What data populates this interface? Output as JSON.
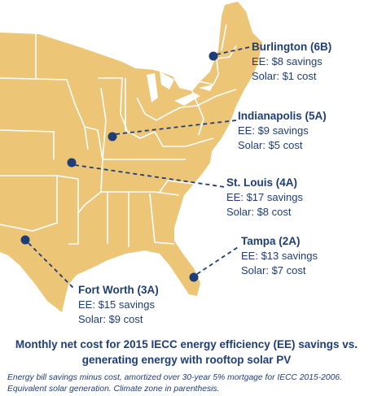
{
  "map": {
    "colors": {
      "land": "#ecc577",
      "borders": "#ffffff",
      "text": "#1f3e78",
      "markers": "#1f3e78"
    },
    "cities": [
      {
        "name": "Burlington (6B)",
        "ee": "EE: $8 savings",
        "solar": "Solar: $1 cost"
      },
      {
        "name": "Indianapolis (5A)",
        "ee": "EE: $9 savings",
        "solar": "Solar: $5 cost"
      },
      {
        "name": "St. Louis (4A)",
        "ee": "EE: $17 savings",
        "solar": "Solar: $8 cost"
      },
      {
        "name": "Tampa (2A)",
        "ee": "EE: $13 savings",
        "solar": "Solar: $7 cost"
      },
      {
        "name": "Fort Worth (3A)",
        "ee": "EE: $15 savings",
        "solar": "Solar: $9 cost"
      }
    ]
  },
  "title": "Monthly net cost for 2015 IECC energy efficiency (EE) savings vs. generating energy with rooftop solar PV",
  "subtitle": "Energy bill savings minus cost, amortized over 30-year 5% mortgage for IECC 2015-2006. Equivalent solar generation. Climate zone in parenthesis."
}
